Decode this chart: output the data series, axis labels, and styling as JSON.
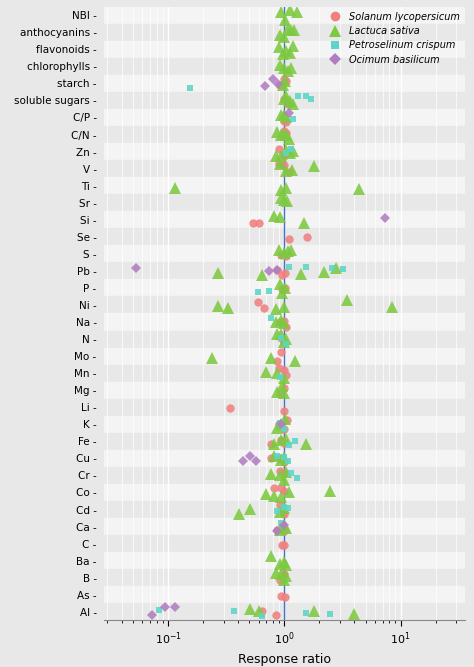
{
  "parameters": [
    "NBI",
    "anthocyanins",
    "flavonoids",
    "chlorophylls",
    "starch",
    "soluble sugars",
    "C/P",
    "C/N",
    "Zn",
    "V",
    "Ti",
    "Sr",
    "Si",
    "Se",
    "S",
    "Pb",
    "P",
    "Ni",
    "Na",
    "N",
    "Mo",
    "Mn",
    "Mg",
    "Li",
    "K",
    "Fe",
    "Cu",
    "Cr",
    "Co",
    "Cd",
    "Ca",
    "C",
    "Ba",
    "B",
    "As",
    "Al"
  ],
  "species": [
    "Solanum lycopersicum",
    "Lactuca sativa",
    "Petroselinum crispum",
    "Ocimum basilicum"
  ],
  "colors": [
    "#F08080",
    "#7DC940",
    "#5DD5C8",
    "#B07EC0"
  ],
  "markers": [
    "o",
    "^",
    "s",
    "D"
  ],
  "marker_sizes": [
    6,
    8,
    5,
    5
  ],
  "xlabel": "Response ratio",
  "background_color": "#E8E8E8",
  "row_color_even": "#E8E8E8",
  "row_color_odd": "#F4F4F4",
  "data": {
    "NBI": {
      "Solanum lycopersicum": [],
      "Lactuca sativa": [
        0.93,
        1.02,
        1.12,
        1.28
      ],
      "Petroselinum crispum": [],
      "Ocimum basilicum": []
    },
    "anthocyanins": {
      "Solanum lycopersicum": [],
      "Lactuca sativa": [
        0.92,
        0.99,
        1.07,
        1.14,
        1.21
      ],
      "Petroselinum crispum": [],
      "Ocimum basilicum": []
    },
    "flavonoids": {
      "Solanum lycopersicum": [],
      "Lactuca sativa": [
        0.9,
        0.97,
        1.04,
        1.11,
        1.19
      ],
      "Petroselinum crispum": [],
      "Ocimum basilicum": []
    },
    "chlorophylls": {
      "Solanum lycopersicum": [],
      "Lactuca sativa": [
        0.91,
        0.99,
        1.07,
        1.14
      ],
      "Petroselinum crispum": [],
      "Ocimum basilicum": []
    },
    "starch": {
      "Solanum lycopersicum": [
        0.92,
        0.99,
        1.04
      ],
      "Lactuca sativa": [
        0.97,
        1.01
      ],
      "Petroselinum crispum": [
        0.155
      ],
      "Ocimum basilicum": [
        0.68,
        0.8,
        0.88
      ]
    },
    "soluble sugars": {
      "Solanum lycopersicum": [
        0.99,
        1.07
      ],
      "Lactuca sativa": [
        0.99,
        1.04,
        1.11,
        1.19
      ],
      "Petroselinum crispum": [
        1.32,
        1.52,
        1.68
      ],
      "Ocimum basilicum": []
    },
    "C/P": {
      "Solanum lycopersicum": [
        0.99,
        1.04
      ],
      "Lactuca sativa": [
        0.94,
        0.99,
        1.04
      ],
      "Petroselinum crispum": [
        1.19
      ],
      "Ocimum basilicum": [
        1.1
      ]
    },
    "C/N": {
      "Solanum lycopersicum": [
        0.99,
        1.04
      ],
      "Lactuca sativa": [
        0.87,
        0.93,
        0.99,
        1.04,
        1.09
      ],
      "Petroselinum crispum": [],
      "Ocimum basilicum": []
    },
    "Zn": {
      "Solanum lycopersicum": [
        0.9,
        0.99
      ],
      "Lactuca sativa": [
        0.84,
        0.94,
        1.04,
        1.11,
        1.19
      ],
      "Petroselinum crispum": [
        1.04,
        1.14
      ],
      "Ocimum basilicum": []
    },
    "V": {
      "Solanum lycopersicum": [
        0.9,
        0.99,
        1.09
      ],
      "Lactuca sativa": [
        0.92,
        1.04,
        1.17,
        1.78
      ],
      "Petroselinum crispum": [],
      "Ocimum basilicum": []
    },
    "Ti": {
      "Solanum lycopersicum": [],
      "Lactuca sativa": [
        0.115,
        0.94,
        1.04,
        4.4
      ],
      "Petroselinum crispum": [],
      "Ocimum basilicum": []
    },
    "Sr": {
      "Solanum lycopersicum": [],
      "Lactuca sativa": [
        0.94,
        0.99,
        1.06
      ],
      "Petroselinum crispum": [],
      "Ocimum basilicum": []
    },
    "Si": {
      "Solanum lycopersicum": [
        0.54,
        0.61
      ],
      "Lactuca sativa": [
        0.81,
        0.91,
        1.48
      ],
      "Petroselinum crispum": [],
      "Ocimum basilicum": [
        7.4
      ]
    },
    "Se": {
      "Solanum lycopersicum": [
        1.09,
        1.58
      ],
      "Lactuca sativa": [],
      "Petroselinum crispum": [],
      "Ocimum basilicum": []
    },
    "S": {
      "Solanum lycopersicum": [
        0.94,
        1.04
      ],
      "Lactuca sativa": [
        0.89,
        0.99,
        1.07,
        1.14
      ],
      "Petroselinum crispum": [],
      "Ocimum basilicum": []
    },
    "Pb": {
      "Solanum lycopersicum": [
        0.87,
        0.96,
        1.02
      ],
      "Lactuca sativa": [
        0.27,
        0.64,
        1.38,
        2.18,
        2.78
      ],
      "Petroselinum crispum": [
        1.09,
        1.53,
        2.58,
        3.18
      ],
      "Ocimum basilicum": [
        0.053,
        0.74,
        0.87
      ]
    },
    "P": {
      "Solanum lycopersicum": [
        0.96,
        1.01
      ],
      "Lactuca sativa": [
        0.92,
        0.96,
        1.01
      ],
      "Petroselinum crispum": [
        0.59,
        0.74
      ],
      "Ocimum basilicum": []
    },
    "Ni": {
      "Solanum lycopersicum": [
        0.59,
        0.67
      ],
      "Lactuca sativa": [
        0.27,
        0.33,
        0.84,
        0.99,
        3.48,
        8.4
      ],
      "Petroselinum crispum": [],
      "Ocimum basilicum": []
    },
    "Na": {
      "Solanum lycopersicum": [
        0.91,
        0.99,
        1.04
      ],
      "Lactuca sativa": [
        0.84,
        0.94,
        0.99
      ],
      "Petroselinum crispum": [
        0.77
      ],
      "Ocimum basilicum": []
    },
    "N": {
      "Solanum lycopersicum": [
        0.94,
        0.99
      ],
      "Lactuca sativa": [
        0.87,
        0.94,
        0.99,
        1.04
      ],
      "Petroselinum crispum": [
        0.94,
        1.04
      ],
      "Ocimum basilicum": []
    },
    "Mo": {
      "Solanum lycopersicum": [
        0.87,
        0.94
      ],
      "Lactuca sativa": [
        0.24,
        0.77,
        1.24
      ],
      "Petroselinum crispum": [],
      "Ocimum basilicum": []
    },
    "Mn": {
      "Solanum lycopersicum": [
        0.89,
        0.99,
        1.04
      ],
      "Lactuca sativa": [
        0.69,
        0.87,
        0.99
      ],
      "Petroselinum crispum": [
        0.91
      ],
      "Ocimum basilicum": []
    },
    "Mg": {
      "Solanum lycopersicum": [
        0.91,
        0.99
      ],
      "Lactuca sativa": [
        0.87,
        0.96,
        0.99
      ],
      "Petroselinum crispum": [],
      "Ocimum basilicum": []
    },
    "Li": {
      "Solanum lycopersicum": [
        0.34,
        0.99
      ],
      "Lactuca sativa": [],
      "Petroselinum crispum": [],
      "Ocimum basilicum": []
    },
    "K": {
      "Solanum lycopersicum": [
        0.89,
        0.99,
        1.06
      ],
      "Lactuca sativa": [
        0.87,
        0.94,
        1.01
      ],
      "Petroselinum crispum": [
        0.91,
        0.99
      ],
      "Ocimum basilicum": [
        0.94
      ]
    },
    "Fe": {
      "Solanum lycopersicum": [
        0.77,
        0.94,
        0.99
      ],
      "Lactuca sativa": [
        0.81,
        0.94,
        1.04,
        1.53
      ],
      "Petroselinum crispum": [
        1.09,
        1.24
      ],
      "Ocimum basilicum": []
    },
    "Cu": {
      "Solanum lycopersicum": [
        0.77,
        0.91,
        0.99
      ],
      "Lactuca sativa": [
        0.81,
        0.94,
        0.99
      ],
      "Petroselinum crispum": [
        0.87,
        0.99,
        1.07
      ],
      "Ocimum basilicum": [
        0.44,
        0.51,
        0.57
      ]
    },
    "Cr": {
      "Solanum lycopersicum": [
        0.91,
        0.99
      ],
      "Lactuca sativa": [
        0.77,
        0.91,
        0.99,
        1.04
      ],
      "Petroselinum crispum": [
        1.14,
        1.29
      ],
      "Ocimum basilicum": []
    },
    "Co": {
      "Solanum lycopersicum": [
        0.81,
        0.94,
        0.99
      ],
      "Lactuca sativa": [
        0.69,
        0.81,
        0.94,
        1.09,
        2.48
      ],
      "Petroselinum crispum": [],
      "Ocimum basilicum": []
    },
    "Cd": {
      "Solanum lycopersicum": [
        0.91,
        0.99
      ],
      "Lactuca sativa": [
        0.41,
        0.51,
        0.91,
        0.99
      ],
      "Petroselinum crispum": [
        0.87,
        0.99,
        1.07
      ],
      "Ocimum basilicum": []
    },
    "Ca": {
      "Solanum lycopersicum": [
        0.87,
        0.99
      ],
      "Lactuca sativa": [
        0.91,
        0.99,
        1.04
      ],
      "Petroselinum crispum": [
        0.94
      ],
      "Ocimum basilicum": [
        0.87,
        0.99
      ]
    },
    "C": {
      "Solanum lycopersicum": [
        0.96,
        0.99
      ],
      "Lactuca sativa": [],
      "Petroselinum crispum": [],
      "Ocimum basilicum": []
    },
    "Ba": {
      "Solanum lycopersicum": [],
      "Lactuca sativa": [
        0.77,
        0.91,
        0.99,
        1.04
      ],
      "Petroselinum crispum": [],
      "Ocimum basilicum": []
    },
    "B": {
      "Solanum lycopersicum": [
        0.91,
        0.99
      ],
      "Lactuca sativa": [
        0.84,
        0.94,
        0.99,
        1.04
      ],
      "Petroselinum crispum": [],
      "Ocimum basilicum": []
    },
    "As": {
      "Solanum lycopersicum": [
        0.94,
        1.01
      ],
      "Lactuca sativa": [],
      "Petroselinum crispum": [],
      "Ocimum basilicum": []
    },
    "Al": {
      "Solanum lycopersicum": [
        0.64,
        0.84
      ],
      "Lactuca sativa": [
        0.51,
        0.61,
        1.78,
        3.95
      ],
      "Petroselinum crispum": [
        0.083,
        0.37,
        0.64,
        1.53,
        2.48
      ],
      "Ocimum basilicum": [
        0.073,
        0.093,
        0.115
      ]
    }
  }
}
